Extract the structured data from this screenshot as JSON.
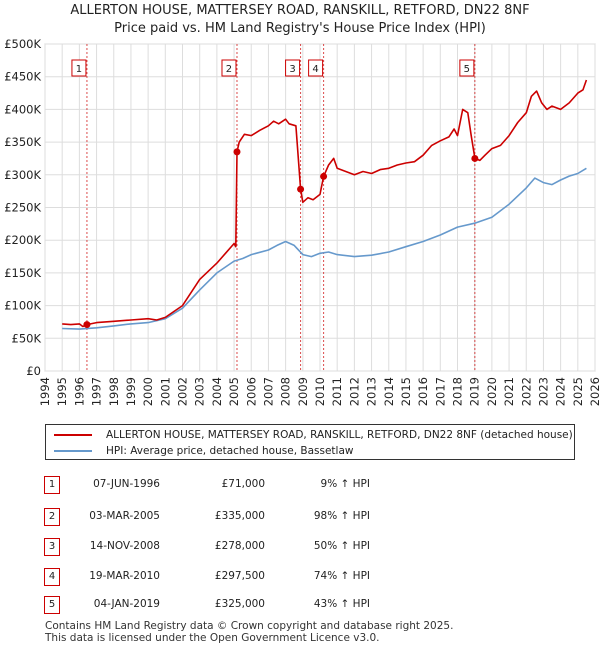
{
  "title_line1": "ALLERTON HOUSE, MATTERSEY ROAD, RANSKILL, RETFORD, DN22 8NF",
  "title_line2": "Price paid vs. HM Land Registry's House Price Index (HPI)",
  "colors": {
    "property": "#cc0000",
    "hpi": "#6699cc",
    "marker_line": "#cc0000"
  },
  "chart_data": {
    "type": "line",
    "x_domain": [
      1994,
      2026
    ],
    "ylim": [
      0,
      500000
    ],
    "yticks": [
      0,
      50000,
      100000,
      150000,
      200000,
      250000,
      300000,
      350000,
      400000,
      450000,
      500000
    ],
    "ytick_labels": [
      "£0",
      "£50K",
      "£100K",
      "£150K",
      "£200K",
      "£250K",
      "£300K",
      "£350K",
      "£400K",
      "£450K",
      "£500K"
    ],
    "xticks": [
      1994,
      1995,
      1996,
      1997,
      1998,
      1999,
      2000,
      2001,
      2002,
      2003,
      2004,
      2005,
      2006,
      2007,
      2008,
      2009,
      2010,
      2011,
      2012,
      2013,
      2014,
      2015,
      2016,
      2017,
      2018,
      2019,
      2020,
      2021,
      2022,
      2023,
      2024,
      2025,
      2026
    ],
    "series": [
      {
        "name": "ALLERTON HOUSE, MATTERSEY ROAD, RANSKILL, RETFORD, DN22 8NF (detached house)",
        "color": "#cc0000",
        "points": [
          [
            1995.0,
            72000
          ],
          [
            1995.5,
            71000
          ],
          [
            1996.0,
            72000
          ],
          [
            1996.2,
            68000
          ],
          [
            1996.44,
            71000
          ],
          [
            1997.0,
            74000
          ],
          [
            1998.0,
            76000
          ],
          [
            1999.0,
            78000
          ],
          [
            2000.0,
            80000
          ],
          [
            2000.5,
            78000
          ],
          [
            2001.0,
            82000
          ],
          [
            2002.0,
            100000
          ],
          [
            2003.0,
            140000
          ],
          [
            2004.0,
            165000
          ],
          [
            2004.5,
            180000
          ],
          [
            2005.0,
            195000
          ],
          [
            2005.1,
            190000
          ],
          [
            2005.17,
            335000
          ],
          [
            2005.3,
            350000
          ],
          [
            2005.6,
            362000
          ],
          [
            2006.0,
            360000
          ],
          [
            2006.5,
            368000
          ],
          [
            2007.0,
            375000
          ],
          [
            2007.3,
            382000
          ],
          [
            2007.6,
            378000
          ],
          [
            2008.0,
            385000
          ],
          [
            2008.2,
            378000
          ],
          [
            2008.6,
            375000
          ],
          [
            2008.87,
            278000
          ],
          [
            2009.0,
            258000
          ],
          [
            2009.3,
            265000
          ],
          [
            2009.6,
            262000
          ],
          [
            2010.0,
            270000
          ],
          [
            2010.21,
            297500
          ],
          [
            2010.5,
            315000
          ],
          [
            2010.8,
            325000
          ],
          [
            2011.0,
            310000
          ],
          [
            2011.5,
            305000
          ],
          [
            2012.0,
            300000
          ],
          [
            2012.5,
            305000
          ],
          [
            2013.0,
            302000
          ],
          [
            2013.5,
            308000
          ],
          [
            2014.0,
            310000
          ],
          [
            2014.5,
            315000
          ],
          [
            2015.0,
            318000
          ],
          [
            2015.5,
            320000
          ],
          [
            2016.0,
            330000
          ],
          [
            2016.5,
            345000
          ],
          [
            2017.0,
            352000
          ],
          [
            2017.5,
            358000
          ],
          [
            2017.8,
            370000
          ],
          [
            2018.0,
            360000
          ],
          [
            2018.3,
            400000
          ],
          [
            2018.6,
            395000
          ],
          [
            2018.8,
            360000
          ],
          [
            2019.01,
            325000
          ],
          [
            2019.3,
            322000
          ],
          [
            2019.6,
            330000
          ],
          [
            2020.0,
            340000
          ],
          [
            2020.5,
            345000
          ],
          [
            2021.0,
            360000
          ],
          [
            2021.5,
            380000
          ],
          [
            2022.0,
            395000
          ],
          [
            2022.3,
            420000
          ],
          [
            2022.6,
            428000
          ],
          [
            2022.9,
            410000
          ],
          [
            2023.2,
            400000
          ],
          [
            2023.5,
            405000
          ],
          [
            2024.0,
            400000
          ],
          [
            2024.5,
            410000
          ],
          [
            2025.0,
            425000
          ],
          [
            2025.3,
            430000
          ],
          [
            2025.5,
            445000
          ]
        ]
      },
      {
        "name": "HPI: Average price, detached house, Bassetlaw",
        "color": "#6699cc",
        "points": [
          [
            1995.0,
            65000
          ],
          [
            1996.0,
            64000
          ],
          [
            1997.0,
            66000
          ],
          [
            1998.0,
            69000
          ],
          [
            1999.0,
            72000
          ],
          [
            2000.0,
            74000
          ],
          [
            2001.0,
            80000
          ],
          [
            2002.0,
            96000
          ],
          [
            2003.0,
            124000
          ],
          [
            2004.0,
            150000
          ],
          [
            2005.0,
            168000
          ],
          [
            2005.5,
            172000
          ],
          [
            2006.0,
            178000
          ],
          [
            2007.0,
            185000
          ],
          [
            2007.5,
            192000
          ],
          [
            2008.0,
            198000
          ],
          [
            2008.5,
            192000
          ],
          [
            2009.0,
            178000
          ],
          [
            2009.5,
            175000
          ],
          [
            2010.0,
            180000
          ],
          [
            2010.5,
            182000
          ],
          [
            2011.0,
            178000
          ],
          [
            2012.0,
            175000
          ],
          [
            2013.0,
            177000
          ],
          [
            2014.0,
            182000
          ],
          [
            2015.0,
            190000
          ],
          [
            2016.0,
            198000
          ],
          [
            2017.0,
            208000
          ],
          [
            2018.0,
            220000
          ],
          [
            2019.0,
            226000
          ],
          [
            2020.0,
            235000
          ],
          [
            2021.0,
            255000
          ],
          [
            2022.0,
            280000
          ],
          [
            2022.5,
            295000
          ],
          [
            2023.0,
            288000
          ],
          [
            2023.5,
            285000
          ],
          [
            2024.0,
            292000
          ],
          [
            2024.5,
            298000
          ],
          [
            2025.0,
            302000
          ],
          [
            2025.5,
            310000
          ]
        ]
      }
    ],
    "sales": [
      {
        "num": "1",
        "year": 1996.44,
        "price": 71000,
        "date": "07-JUN-1996",
        "price_label": "£71,000",
        "hpi": "9% ↑ HPI"
      },
      {
        "num": "2",
        "year": 2005.17,
        "price": 335000,
        "date": "03-MAR-2005",
        "price_label": "£335,000",
        "hpi": "98% ↑ HPI"
      },
      {
        "num": "3",
        "year": 2008.87,
        "price": 278000,
        "date": "14-NOV-2008",
        "price_label": "£278,000",
        "hpi": "50% ↑ HPI"
      },
      {
        "num": "4",
        "year": 2010.21,
        "price": 297500,
        "date": "19-MAR-2010",
        "price_label": "£297,500",
        "hpi": "74% ↑ HPI"
      },
      {
        "num": "5",
        "year": 2019.01,
        "price": 325000,
        "date": "04-JAN-2019",
        "price_label": "£325,000",
        "hpi": "43% ↑ HPI"
      }
    ]
  },
  "legend": {
    "property_label": "ALLERTON HOUSE, MATTERSEY ROAD, RANSKILL, RETFORD, DN22 8NF (detached house)",
    "hpi_label": "HPI: Average price, detached house, Bassetlaw"
  },
  "footer": {
    "line1": "Contains HM Land Registry data © Crown copyright and database right 2025.",
    "line2": "This data is licensed under the Open Government Licence v3.0."
  }
}
